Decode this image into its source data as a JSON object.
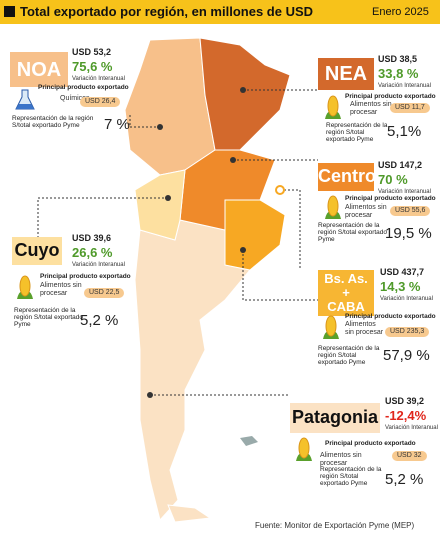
{
  "header": {
    "title": "Total exportado por región, en millones de USD",
    "date": "Enero 2025"
  },
  "regions": [
    {
      "name_lines": [
        "NOA"
      ],
      "total": "USD 53,2",
      "growth": "75,6 %",
      "growth_label": "Variación Interanual",
      "product_label": "Principal producto exportado",
      "product": "Químicos",
      "product_value": "USD 26,4",
      "share_label": "Representación de la región S/total exportado Pyme",
      "share": "7 %"
    },
    {
      "name_lines": [
        "NEA"
      ],
      "total": "USD 38,5",
      "growth": "33,8 %",
      "growth_label": "Variación Interanual",
      "product_label": "Principal producto exportado",
      "product": "Alimentos sin procesar",
      "product_value": "USD 11,7",
      "share_label": "Representación de la región S/total exportado Pyme",
      "share": "5,1%"
    },
    {
      "name_lines": [
        "Centro"
      ],
      "total": "USD 147,2",
      "growth": "70 %",
      "growth_label": "Variación Interanual",
      "product_label": "Principal producto exportado",
      "product": "Alimentos sin procesar",
      "product_value": "USD 55,6",
      "share_label": "Representación de la región S/total exportado Pyme",
      "share": "19,5 %"
    },
    {
      "name_lines": [
        "Cuyo"
      ],
      "total": "USD 39,6",
      "growth": "26,6 %",
      "growth_label": "Variación Interanual",
      "product_label": "Principal producto exportado",
      "product": "Alimentos sin procesar",
      "product_value": "USD 22,5",
      "share_label": "Representación de la región S/total exportado Pyme",
      "share": "5,2 %"
    },
    {
      "name_lines": [
        "Bs. As.",
        "+",
        "CABA"
      ],
      "total": "USD 437,7",
      "growth": "14,3 %",
      "growth_label": "Variación Interanual",
      "product_label": "Principal producto exportado",
      "product": "Alimentos sin procesar",
      "product_value": "USD 235,3",
      "share_label": "Representación de la región S/total exportado Pyme",
      "share": "57,9 %"
    },
    {
      "name_lines": [
        "Patagonia"
      ],
      "total": "USD 39,2",
      "growth": "-12,4%",
      "growth_label": "Variación Interanual",
      "product_label": "Principal producto exportado",
      "product": "Alimentos sin procesar",
      "product_value": "USD 32",
      "share_label": "Representación de la región S/total exportado Pyme",
      "share": "5,2 %"
    }
  ],
  "footer": {
    "source": "Fuente: Monitor de Exportación Pyme (MEP)"
  }
}
